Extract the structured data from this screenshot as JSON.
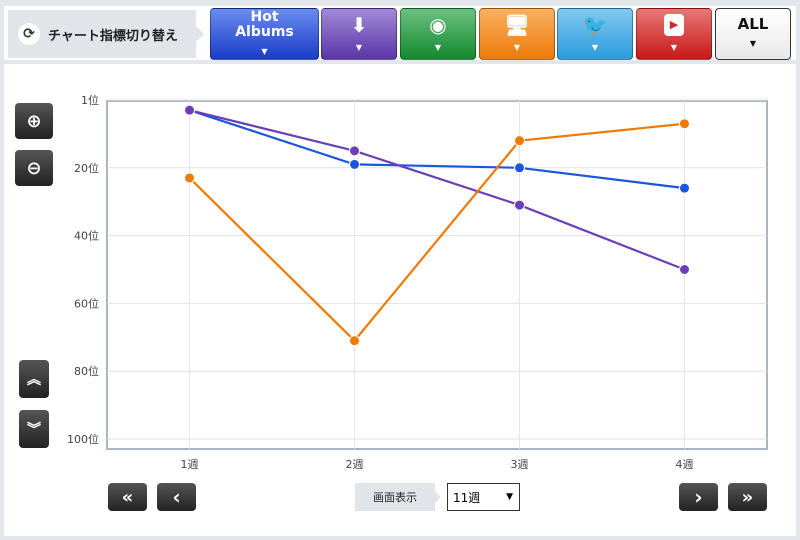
{
  "header": {
    "switch_label": "チャート指標切り替え",
    "switch_icon": "refresh-icon",
    "buttons": [
      {
        "label": "Hot Albums",
        "icon": "",
        "color": "#2a4fd6"
      },
      {
        "label": "",
        "icon": "download-cd-icon",
        "color": "#6a45b8"
      },
      {
        "label": "",
        "icon": "radio-antenna-icon",
        "color": "#1f9a3a"
      },
      {
        "label": "",
        "icon": "pc-cd-icon",
        "color": "#f08a12"
      },
      {
        "label": "",
        "icon": "twitter-icon",
        "color": "#3aa6e4"
      },
      {
        "label": "",
        "icon": "youtube-icon",
        "color": "#d42a2a"
      },
      {
        "label": "ALL",
        "icon": "",
        "color": "#ffffff"
      }
    ]
  },
  "controls": {
    "display_label": "画面表示",
    "display_value": "11週",
    "first_label": "«",
    "prev_label": "‹",
    "next_label": "›",
    "last_label": "»"
  },
  "chart_data": {
    "type": "line",
    "categories": [
      "1週",
      "2週",
      "3週",
      "4週"
    ],
    "y_ticks": [
      "1位",
      "20位",
      "40位",
      "60位",
      "80位",
      "100位"
    ],
    "y_tick_values": [
      0,
      20,
      40,
      60,
      80,
      100
    ],
    "ylim": [
      0,
      100
    ],
    "y_inverted": true,
    "grid": true,
    "series": [
      {
        "color": "#1a56db",
        "values": [
          3,
          19,
          20,
          26
        ]
      },
      {
        "color": "#6a3fb8",
        "values": [
          3,
          15,
          31,
          50
        ]
      },
      {
        "color": "#f07a00",
        "values": [
          23,
          71,
          12,
          7
        ]
      }
    ]
  }
}
